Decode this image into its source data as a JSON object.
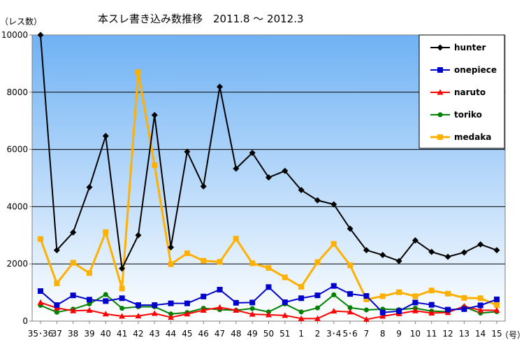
{
  "chart_data": {
    "type": "line",
    "title": "本スレ書き込み数推移　2011.8 〜 2012.3",
    "ylabel": "（レス数）",
    "xlabel": "（号）",
    "categories": [
      "35･36",
      "37",
      "38",
      "39",
      "40",
      "41",
      "42",
      "43",
      "44",
      "45",
      "46",
      "47",
      "48",
      "49",
      "50",
      "51",
      "1",
      "2",
      "3･4",
      "5･6",
      "7",
      "8",
      "9",
      "10",
      "11",
      "12",
      "13",
      "14",
      "15"
    ],
    "ylim": [
      0,
      10000
    ],
    "yticks": [
      "0",
      "2000",
      "4000",
      "6000",
      "8000",
      "10000"
    ],
    "grid": true,
    "legend_position": "top-right",
    "series": [
      {
        "name": "hunter",
        "color": "#000000",
        "marker": "diamond",
        "values": [
          10000,
          2480,
          3100,
          4680,
          6470,
          1840,
          3000,
          7200,
          2580,
          5920,
          4710,
          8190,
          5330,
          5880,
          5020,
          5250,
          4580,
          4220,
          4080,
          3230,
          2480,
          2310,
          2100,
          2820,
          2420,
          2250,
          2400,
          2680,
          2480
        ]
      },
      {
        "name": "onepiece",
        "color": "#0000cc",
        "marker": "square",
        "values": [
          1050,
          560,
          900,
          750,
          700,
          800,
          560,
          560,
          620,
          620,
          860,
          1100,
          640,
          650,
          1190,
          660,
          800,
          900,
          1230,
          950,
          880,
          300,
          350,
          650,
          570,
          400,
          420,
          550,
          760
        ]
      },
      {
        "name": "naruto",
        "color": "#ff0000",
        "marker": "triangle",
        "values": [
          650,
          460,
          360,
          380,
          250,
          170,
          180,
          270,
          130,
          250,
          380,
          480,
          380,
          240,
          220,
          200,
          90,
          90,
          350,
          320,
          60,
          170,
          260,
          360,
          280,
          300,
          520,
          380,
          380
        ]
      },
      {
        "name": "toriko",
        "color": "#008000",
        "marker": "circle",
        "values": [
          550,
          310,
          420,
          600,
          930,
          450,
          500,
          500,
          250,
          300,
          450,
          400,
          380,
          440,
          320,
          600,
          320,
          460,
          920,
          470,
          390,
          420,
          400,
          450,
          350,
          330,
          500,
          280,
          330
        ]
      },
      {
        "name": "medaka",
        "color": "#ffb000",
        "marker": "square",
        "values": [
          2870,
          1320,
          2040,
          1680,
          3110,
          1140,
          8700,
          5450,
          1990,
          2370,
          2110,
          2070,
          2880,
          2020,
          1860,
          1530,
          1200,
          2060,
          2700,
          1950,
          760,
          870,
          1010,
          870,
          1070,
          960,
          810,
          800,
          560
        ]
      }
    ]
  }
}
